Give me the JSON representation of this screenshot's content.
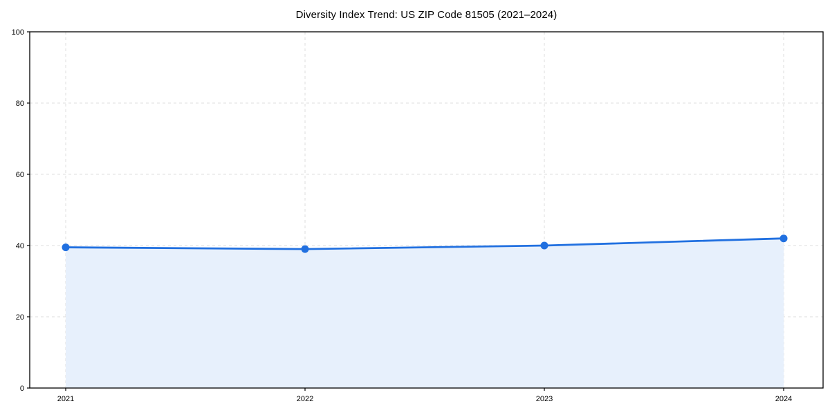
{
  "page": {
    "background": "#ffffff"
  },
  "chart_data": {
    "type": "line",
    "title": "Diversity Index Trend: US ZIP Code 81505 (2021–2024)",
    "x": [
      "2021",
      "2022",
      "2023",
      "2024"
    ],
    "series": [
      {
        "name": "Diversity Index",
        "values": [
          39.5,
          39,
          40,
          42
        ]
      }
    ],
    "xlabel": "",
    "ylabel": "",
    "ylim": [
      0,
      100
    ],
    "yticks": [
      0,
      20,
      40,
      60,
      80,
      100
    ],
    "xtick_labels": [
      "2021",
      "2022",
      "2023",
      "2024"
    ],
    "grid": true,
    "grid_style": "dashed",
    "legend_position": "none",
    "area_fill": true,
    "marker": "circle",
    "colors": {
      "line": "#2170e0",
      "marker": "#2170e0",
      "fill": "#e7f0fc",
      "grid": "#dddddd",
      "axis": "#000000",
      "tick_label": "#000000",
      "background": "#ffffff"
    }
  }
}
